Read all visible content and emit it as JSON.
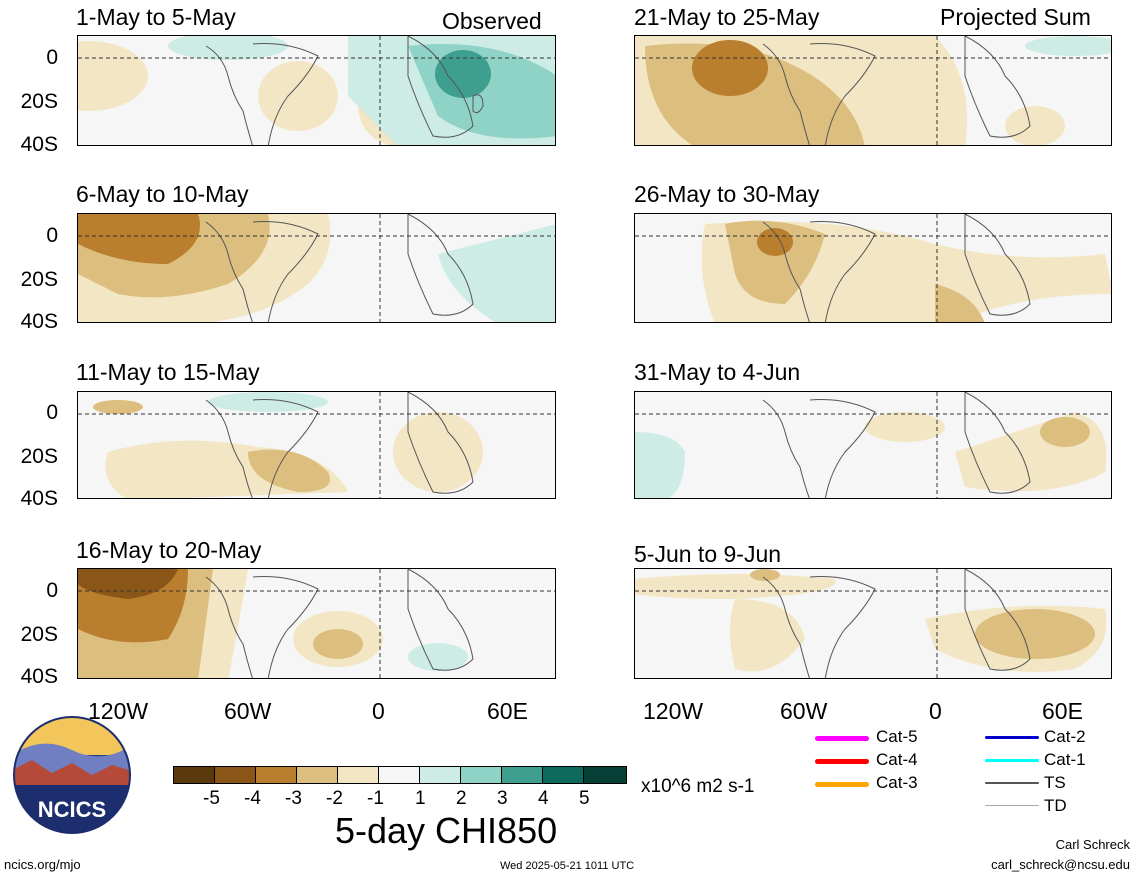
{
  "panels_left": [
    {
      "period": "1-May to 5-May",
      "tag": "Observed"
    },
    {
      "period": "6-May to 10-May",
      "tag": ""
    },
    {
      "period": "11-May to 15-May",
      "tag": ""
    },
    {
      "period": "16-May to 20-May",
      "tag": ""
    }
  ],
  "panels_right": [
    {
      "period": "21-May to 25-May",
      "tag": "Projected Sum"
    },
    {
      "period": "26-May to 30-May",
      "tag": ""
    },
    {
      "period": "31-May to 4-Jun",
      "tag": ""
    },
    {
      "period": "5-Jun to 9-Jun",
      "tag": ""
    }
  ],
  "y_ticks": [
    "0",
    "20S",
    "40S"
  ],
  "x_ticks": [
    "120W",
    "60W",
    "0",
    "60E"
  ],
  "colorbar": {
    "ticks": [
      "-5",
      "-4",
      "-3",
      "-2",
      "-1",
      "1",
      "2",
      "3",
      "4",
      "5"
    ],
    "units": "x10^6 m2 s-1",
    "colors": [
      "#5a3a0c",
      "#8a5617",
      "#b97e2e",
      "#dcbe7e",
      "#f3e6c4",
      "#f6f6f6",
      "#cdece6",
      "#8fd3c6",
      "#3f9f8e",
      "#0e6a5c",
      "#063f35"
    ]
  },
  "title": "5-day CHI850",
  "logo": {
    "text": "NCICS"
  },
  "legend": [
    {
      "label": "Cat-5",
      "color": "#ff00ff"
    },
    {
      "label": "Cat-4",
      "color": "#ff0000"
    },
    {
      "label": "Cat-3",
      "color": "#ffa500"
    },
    {
      "label": "Cat-2",
      "color": "#0000cc"
    },
    {
      "label": "Cat-1",
      "color": "#00ffff"
    },
    {
      "label": "TS",
      "color": "#555555"
    },
    {
      "label": "TD",
      "color": "#aaaaaa"
    }
  ],
  "footer": {
    "url": "ncics.org/mjo",
    "timestamp": "Wed 2025-05-21 1011 UTC",
    "author": "Carl Schreck",
    "email": "carl_schreck@ncsu.edu"
  }
}
